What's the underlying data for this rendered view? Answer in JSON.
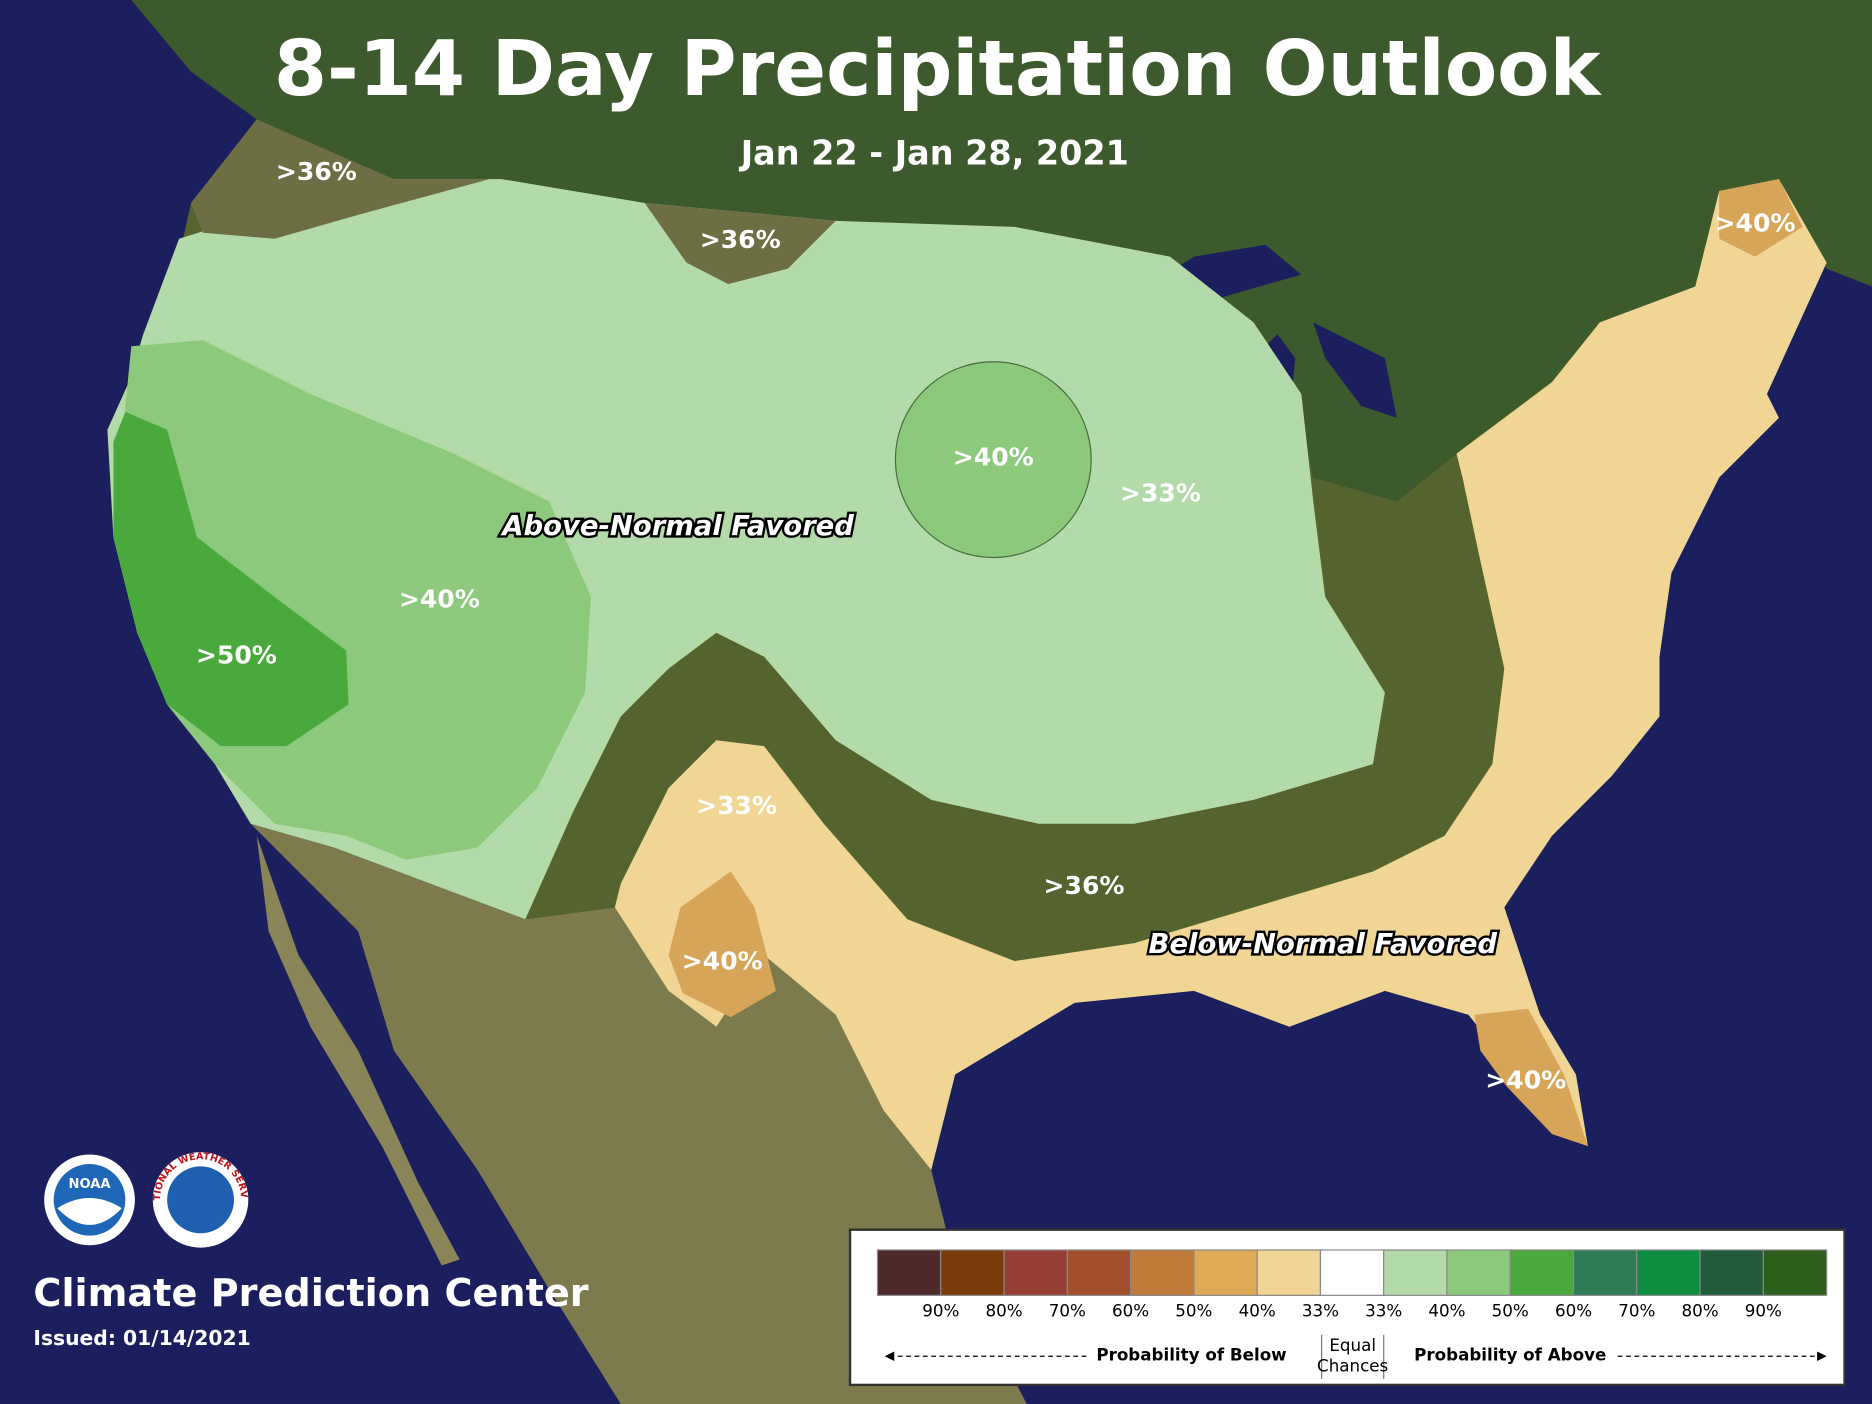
{
  "header": {
    "title": "8-14 Day Precipitation Outlook",
    "dates": "Jan 22 - Jan 28, 2021"
  },
  "regions": [
    {
      "label": ">36%"
    },
    {
      "label": ">36%"
    },
    {
      "label": ">40%"
    },
    {
      "label": ">40%"
    },
    {
      "label": ">33%"
    },
    {
      "label": ">40%"
    },
    {
      "label": ">50%"
    },
    {
      "label": ">33%"
    },
    {
      "label": ">36%"
    },
    {
      "label": ">40%"
    },
    {
      "label": ">40%"
    }
  ],
  "annotations": [
    "Above-Normal Favored",
    "Below-Normal Favored"
  ],
  "logos": {
    "noaa": "NOAA",
    "nws": "NATIONAL WEATHER SERVICE"
  },
  "footer": {
    "org": "Climate Prediction Center",
    "issued": "Issued: 01/14/2021"
  },
  "legend": {
    "colors": [
      "#4e2a2a",
      "#7a3a0a",
      "#963e33",
      "#a4502e",
      "#c07a3a",
      "#deaa55",
      "#f0d595",
      "#ffffff",
      "#b3dbaa",
      "#8cc97c",
      "#4aa93c",
      "#2f7d55",
      "#0c8d3f",
      "#235c3a",
      "#2c5e1c"
    ],
    "labels": [
      "90%",
      "80%",
      "70%",
      "60%",
      "50%",
      "40%",
      "33%",
      "33%",
      "40%",
      "50%",
      "60%",
      "70%",
      "80%",
      "90%"
    ],
    "equal": [
      "Equal",
      "Chances"
    ],
    "below": "Probability of Below",
    "above": "Probability of Above"
  }
}
